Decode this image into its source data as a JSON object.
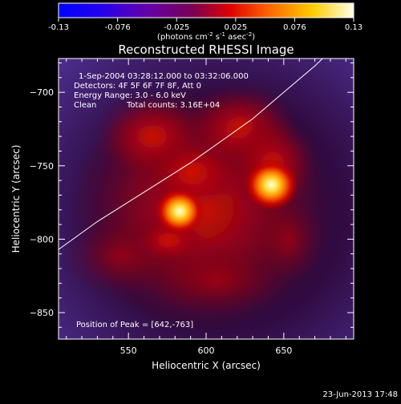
{
  "colorbar": {
    "ticks": [
      "-0.13",
      "-0.076",
      "-0.025",
      "0.025",
      "0.076",
      "0.13"
    ],
    "units_main": "(photons cm",
    "units_exp1": "-2",
    "units_mid": " s",
    "units_exp2": "-1",
    "units_end": " asec",
    "units_exp3": "-2",
    "units_close": ")"
  },
  "chart_data": {
    "type": "heatmap",
    "title": "Reconstructed RHESSI Image",
    "xlabel": "Heliocentric X (arcsec)",
    "ylabel": "Heliocentric Y (arcsec)",
    "xlim": [
      505,
      695
    ],
    "ylim": [
      -868,
      -677
    ],
    "xticks": [
      550,
      600,
      650
    ],
    "yticks": [
      -700,
      -750,
      -800,
      -850
    ],
    "color_range": [
      -0.13,
      0.13
    ],
    "sources": [
      {
        "x": 642,
        "y": -763,
        "peak": 0.13
      },
      {
        "x": 583,
        "y": -781,
        "peak": 0.12
      }
    ],
    "limb_curve": [
      [
        505,
        -807
      ],
      [
        530,
        -788
      ],
      [
        560,
        -768
      ],
      [
        590,
        -748
      ],
      [
        610,
        -733
      ],
      [
        630,
        -718
      ],
      [
        650,
        -700
      ],
      [
        670,
        -682
      ],
      [
        675,
        -677
      ]
    ],
    "annotations": {
      "time": "1-Sep-2004 03:28:12.000 to 03:32:06.000",
      "detectors": "Detectors: 4F 5F 6F 7F 8F, Att 0",
      "energy": "Energy Range: 3.0 - 6.0 keV",
      "method": "Clean",
      "counts": "Total counts: 3.16E+04",
      "peak": "Position of Peak = [642,-763]"
    }
  },
  "footer": {
    "date": "23-Jun-2013 17:48"
  }
}
